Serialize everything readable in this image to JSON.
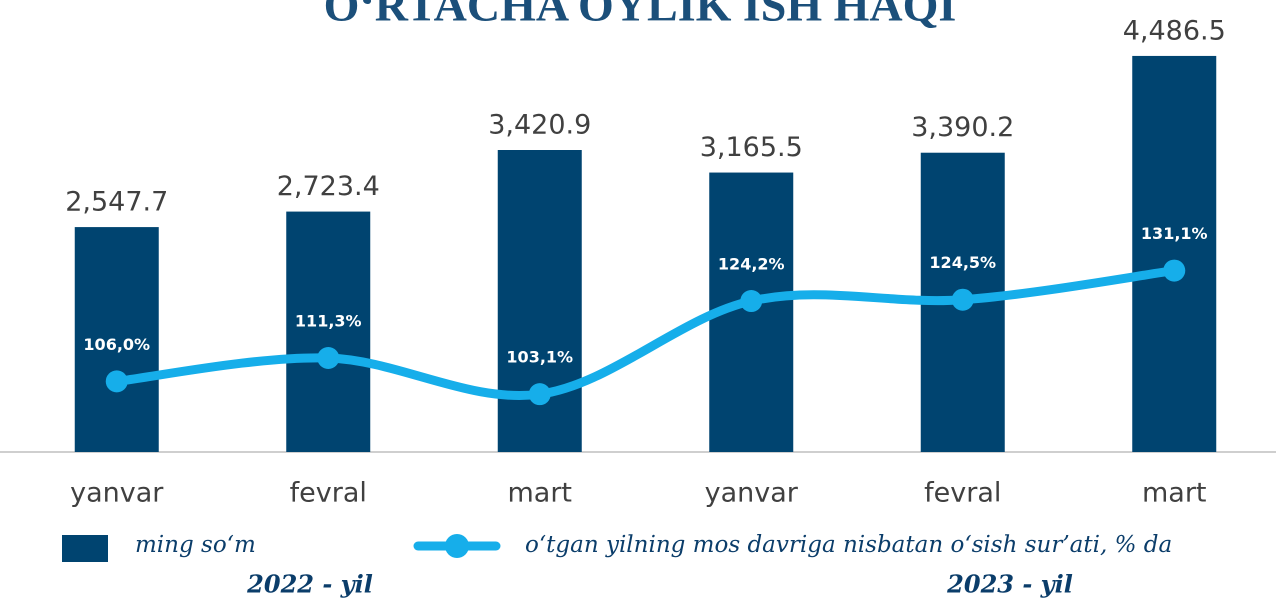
{
  "chart_data": {
    "type": "bar_line",
    "title": "O‘RTACHA OYLIK ISH HAQI",
    "categories": [
      "yanvar",
      "fevral",
      "mart",
      "yanvar",
      "fevral",
      "mart"
    ],
    "series": [
      {
        "name": "ming so‘m",
        "color": "#004470",
        "values": [
          2547.7,
          2723.4,
          3420.9,
          3165.5,
          3390.2,
          4486.5
        ],
        "value_labels": [
          "2,547.7",
          "2,723.4",
          "3,420.9",
          "3,165.5",
          "3,390.2",
          "4,486.5"
        ]
      },
      {
        "name": "o‘tgan yilning mos davriga nisbatan o‘sish sur’ati, % da",
        "color": "#16aeea",
        "axis": "y2",
        "values": [
          106.0,
          111.3,
          103.1,
          124.2,
          124.5,
          131.1
        ],
        "value_labels": [
          "106,0%",
          "111,3%",
          "103,1%",
          "124,2%",
          "124,5%",
          "131,1%"
        ]
      }
    ],
    "annotations": [
      "2022 - yil",
      "2023 - yil"
    ],
    "ylim": [
      0,
      5000
    ],
    "y2lim": [
      90,
      190
    ]
  }
}
